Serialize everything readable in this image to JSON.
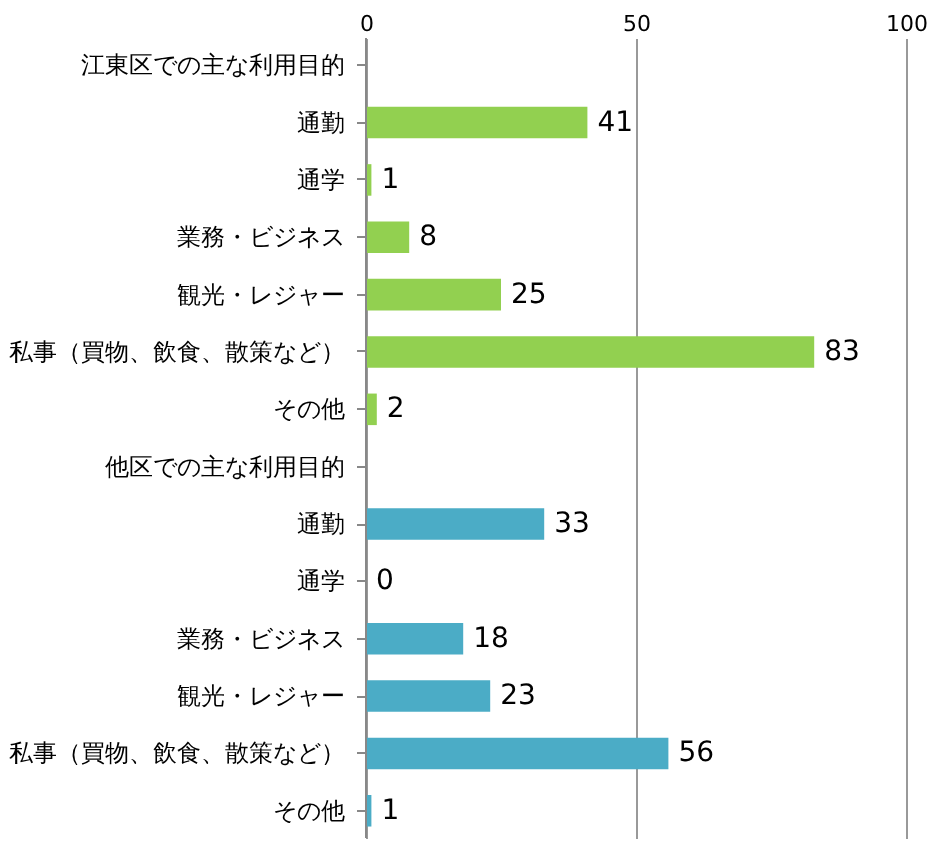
{
  "chart_data": {
    "type": "bar",
    "orientation": "horizontal",
    "categories": [
      "江東区での主な利用目的",
      "通勤",
      "通学",
      "業務・ビジネス",
      "観光・レジャー",
      "私事（買物、飲食、散策など）",
      "その他",
      "他区での主な利用目的",
      "通勤",
      "通学",
      "業務・ビジネス",
      "観光・レジャー",
      "私事（買物、飲食、散策など）",
      "その他"
    ],
    "values": [
      null,
      41,
      1,
      8,
      25,
      83,
      2,
      null,
      33,
      0,
      18,
      23,
      56,
      1
    ],
    "colors": [
      "#92d050",
      "#92d050",
      "#92d050",
      "#92d050",
      "#92d050",
      "#92d050",
      "#92d050",
      "#4bacc6",
      "#4bacc6",
      "#4bacc6",
      "#4bacc6",
      "#4bacc6",
      "#4bacc6",
      "#4bacc6"
    ],
    "xlim": [
      0,
      100
    ],
    "xticks": [
      0,
      50,
      100
    ],
    "grid": "x",
    "data_labels": true
  }
}
